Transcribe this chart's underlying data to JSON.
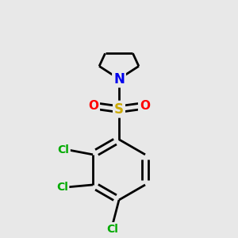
{
  "background_color": "#e8e8e8",
  "atom_colors": {
    "C": "#000000",
    "N": "#0000ee",
    "S": "#ccaa00",
    "O": "#ff0000",
    "Cl": "#00aa00"
  },
  "bond_color": "#000000",
  "bond_width": 2.0,
  "figsize": [
    3.0,
    3.0
  ],
  "dpi": 100
}
